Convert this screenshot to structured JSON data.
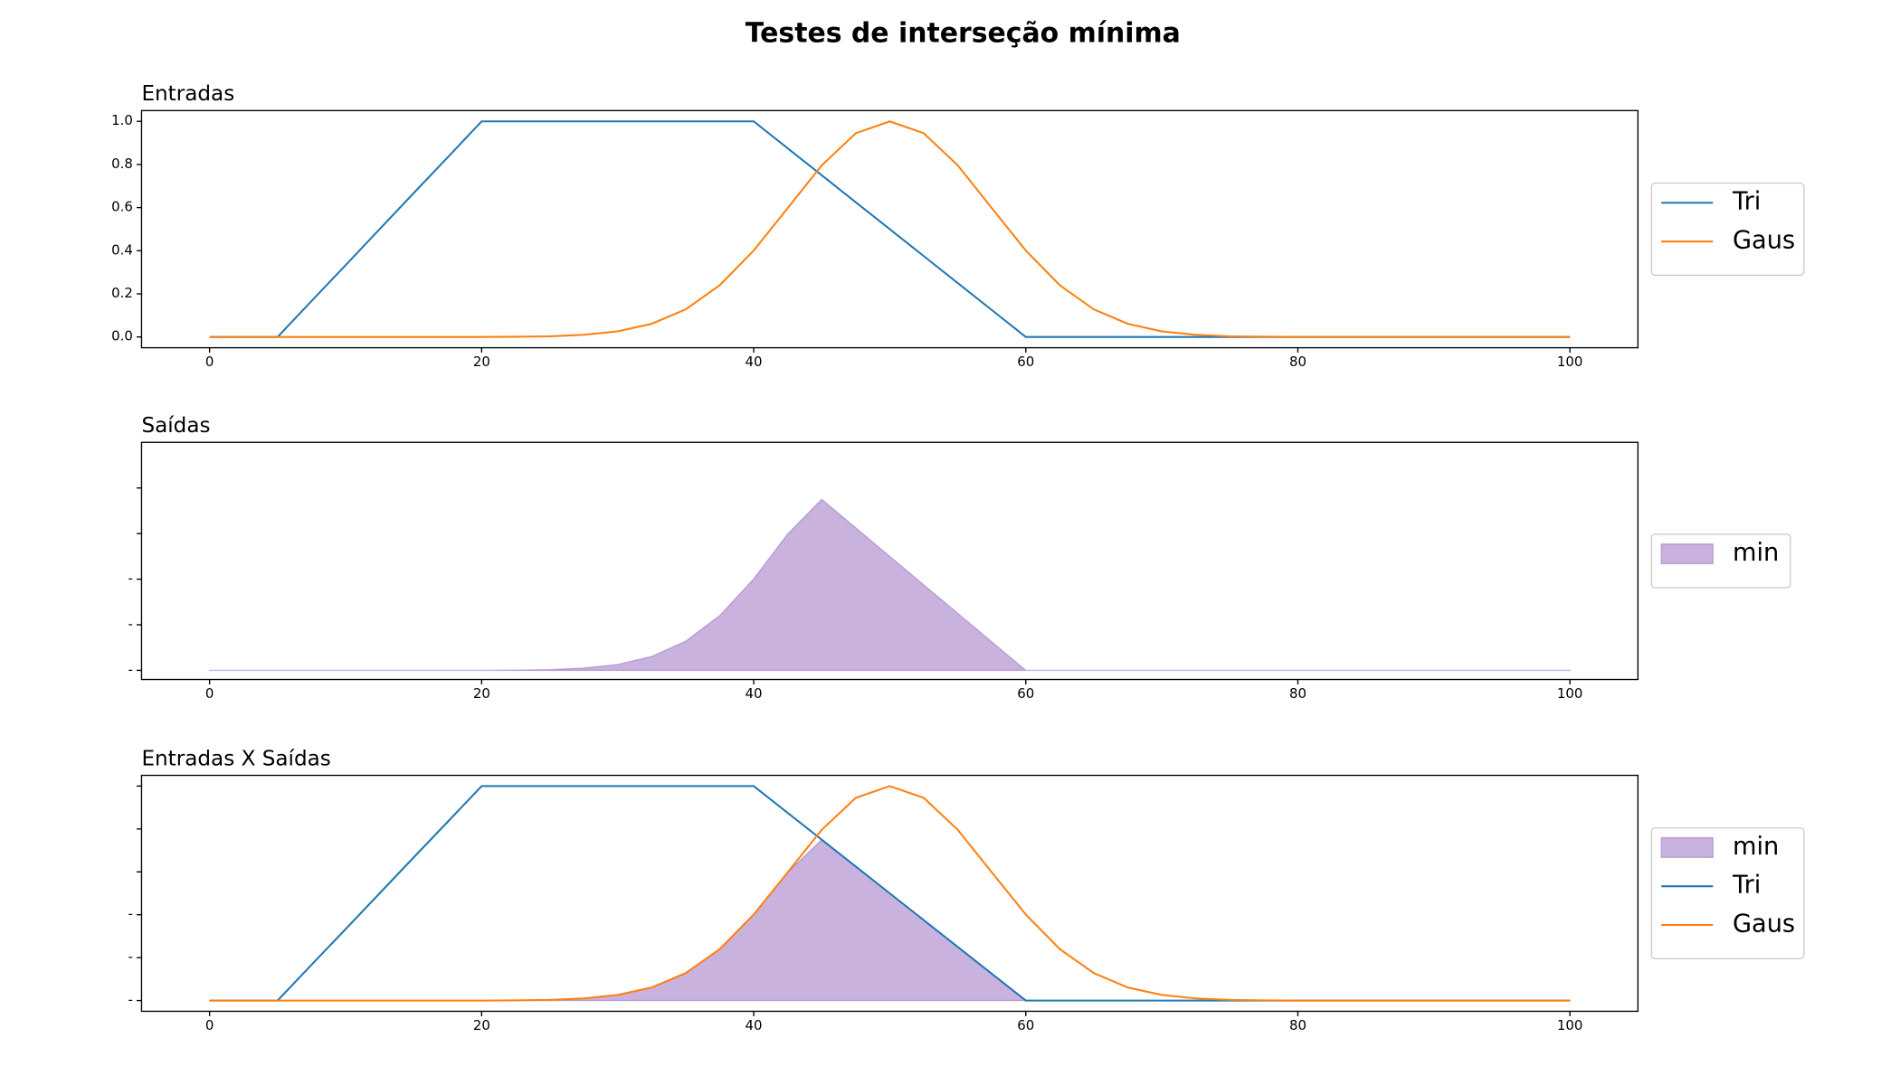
{
  "title": "Testes de interseção mínima",
  "chart_data": [
    {
      "type": "line",
      "title": "Entradas",
      "x": [
        0,
        2.5,
        5,
        7.5,
        10,
        12.5,
        15,
        17.5,
        20,
        22.5,
        25,
        27.5,
        30,
        32.5,
        35,
        37.5,
        40,
        42.5,
        45,
        47.5,
        50,
        52.5,
        55,
        57.5,
        60,
        62.5,
        65,
        67.5,
        70,
        72.5,
        75,
        77.5,
        80,
        82.5,
        85,
        87.5,
        90,
        92.5,
        95,
        97.5,
        100
      ],
      "series": [
        {
          "name": "Tri",
          "color": "#1f77b4",
          "values": [
            0,
            0,
            0,
            0.167,
            0.333,
            0.5,
            0.667,
            0.833,
            1,
            1,
            1,
            1,
            1,
            1,
            1,
            1,
            1,
            0.875,
            0.75,
            0.625,
            0.5,
            0.375,
            0.25,
            0.125,
            0,
            0,
            0,
            0,
            0,
            0,
            0,
            0,
            0,
            0,
            0,
            0,
            0,
            0,
            0,
            0,
            0
          ]
        },
        {
          "name": "Gaus",
          "color": "#ff7f0e",
          "values": [
            0,
            0,
            0,
            0,
            0,
            0,
            0,
            0,
            0,
            0.001,
            0.003,
            0.01,
            0.026,
            0.061,
            0.128,
            0.24,
            0.401,
            0.598,
            0.796,
            0.945,
            1,
            0.945,
            0.796,
            0.598,
            0.401,
            0.24,
            0.128,
            0.061,
            0.026,
            0.01,
            0.003,
            0.001,
            0,
            0,
            0,
            0,
            0,
            0,
            0,
            0,
            0
          ]
        }
      ],
      "xlim": [
        -5,
        105
      ],
      "xticks": [
        0,
        20,
        40,
        60,
        80,
        100
      ],
      "ylim": [
        -0.05,
        1.05
      ],
      "yticks": [
        {
          "value": 0,
          "label": "0.0"
        },
        {
          "value": 0.2,
          "label": "0.2"
        },
        {
          "value": 0.4,
          "label": "0.4"
        },
        {
          "value": 0.6,
          "label": "0.6"
        },
        {
          "value": 0.8,
          "label": "0.8"
        },
        {
          "value": 1,
          "label": "1.0"
        }
      ],
      "legend": "right"
    },
    {
      "type": "area",
      "title": "Saídas",
      "x": [
        0,
        2.5,
        5,
        7.5,
        10,
        12.5,
        15,
        17.5,
        20,
        22.5,
        25,
        27.5,
        30,
        32.5,
        35,
        37.5,
        40,
        42.5,
        45,
        47.5,
        50,
        52.5,
        55,
        57.5,
        60,
        62.5,
        65,
        67.5,
        70,
        72.5,
        75,
        77.5,
        80,
        82.5,
        85,
        87.5,
        90,
        92.5,
        95,
        97.5,
        100
      ],
      "series": [
        {
          "name": "min",
          "color": "#9467bd",
          "values": [
            0,
            0,
            0,
            0,
            0,
            0,
            0,
            0,
            0,
            0.001,
            0.003,
            0.01,
            0.026,
            0.061,
            0.128,
            0.24,
            0.401,
            0.598,
            0.75,
            0.625,
            0.5,
            0.375,
            0.25,
            0.125,
            0,
            0,
            0,
            0,
            0,
            0,
            0,
            0,
            0,
            0,
            0,
            0,
            0,
            0,
            0,
            0,
            0
          ]
        }
      ],
      "xlim": [
        -5,
        105
      ],
      "xticks": [
        0,
        20,
        40,
        60,
        80,
        100
      ],
      "ylim": [
        -0.04,
        1.0
      ],
      "yticks": [
        {
          "value": 0,
          "label": "-"
        },
        {
          "value": 0.2,
          "label": "-"
        },
        {
          "value": 0.4,
          "label": "-"
        }
      ],
      "ytick_marks": [
        0.6,
        0.8
      ],
      "legend": "right"
    },
    {
      "type": "line",
      "title": "Entradas X Saídas",
      "x": [
        0,
        2.5,
        5,
        7.5,
        10,
        12.5,
        15,
        17.5,
        20,
        22.5,
        25,
        27.5,
        30,
        32.5,
        35,
        37.5,
        40,
        42.5,
        45,
        47.5,
        50,
        52.5,
        55,
        57.5,
        60,
        62.5,
        65,
        67.5,
        70,
        72.5,
        75,
        77.5,
        80,
        82.5,
        85,
        87.5,
        90,
        92.5,
        95,
        97.5,
        100
      ],
      "series": [
        {
          "name": "min",
          "type": "area",
          "color": "#9467bd",
          "values": [
            0,
            0,
            0,
            0,
            0,
            0,
            0,
            0,
            0,
            0.001,
            0.003,
            0.01,
            0.026,
            0.061,
            0.128,
            0.24,
            0.401,
            0.598,
            0.75,
            0.625,
            0.5,
            0.375,
            0.25,
            0.125,
            0,
            0,
            0,
            0,
            0,
            0,
            0,
            0,
            0,
            0,
            0,
            0,
            0,
            0,
            0,
            0,
            0
          ]
        },
        {
          "name": "Tri",
          "color": "#1f77b4",
          "values": [
            0,
            0,
            0,
            0.167,
            0.333,
            0.5,
            0.667,
            0.833,
            1,
            1,
            1,
            1,
            1,
            1,
            1,
            1,
            1,
            0.875,
            0.75,
            0.625,
            0.5,
            0.375,
            0.25,
            0.125,
            0,
            0,
            0,
            0,
            0,
            0,
            0,
            0,
            0,
            0,
            0,
            0,
            0,
            0,
            0,
            0,
            0
          ]
        },
        {
          "name": "Gaus",
          "color": "#ff7f0e",
          "values": [
            0,
            0,
            0,
            0,
            0,
            0,
            0,
            0,
            0,
            0.001,
            0.003,
            0.01,
            0.026,
            0.061,
            0.128,
            0.24,
            0.401,
            0.598,
            0.796,
            0.945,
            1,
            0.945,
            0.796,
            0.598,
            0.401,
            0.24,
            0.128,
            0.061,
            0.026,
            0.01,
            0.003,
            0.001,
            0,
            0,
            0,
            0,
            0,
            0,
            0,
            0,
            0
          ]
        }
      ],
      "xlim": [
        -5,
        105
      ],
      "xticks": [
        0,
        20,
        40,
        60,
        80,
        100
      ],
      "ylim": [
        -0.05,
        1.05
      ],
      "yticks": [
        {
          "value": 0,
          "label": "-"
        },
        {
          "value": 0.2,
          "label": "-"
        },
        {
          "value": 0.4,
          "label": "-"
        }
      ],
      "ytick_marks": [
        0.6,
        0.8,
        1
      ],
      "legend": "right"
    }
  ]
}
